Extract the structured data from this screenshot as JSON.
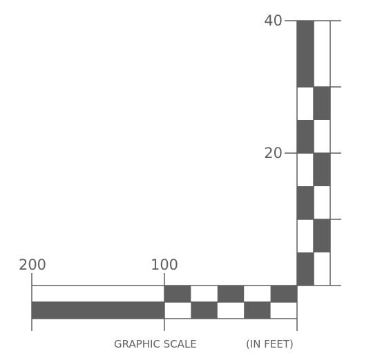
{
  "horizontal_scale": {
    "tick_labels": [
      "200",
      "100"
    ],
    "caption": "GRAPHIC SCALE",
    "units": "(IN FEET)"
  },
  "vertical_scale": {
    "tick_labels": [
      "40",
      "20"
    ]
  },
  "colors": {
    "fill": "#5f5f5f",
    "line": "#5f5f5f",
    "text": "#5f5f5f",
    "background": "#ffffff"
  }
}
